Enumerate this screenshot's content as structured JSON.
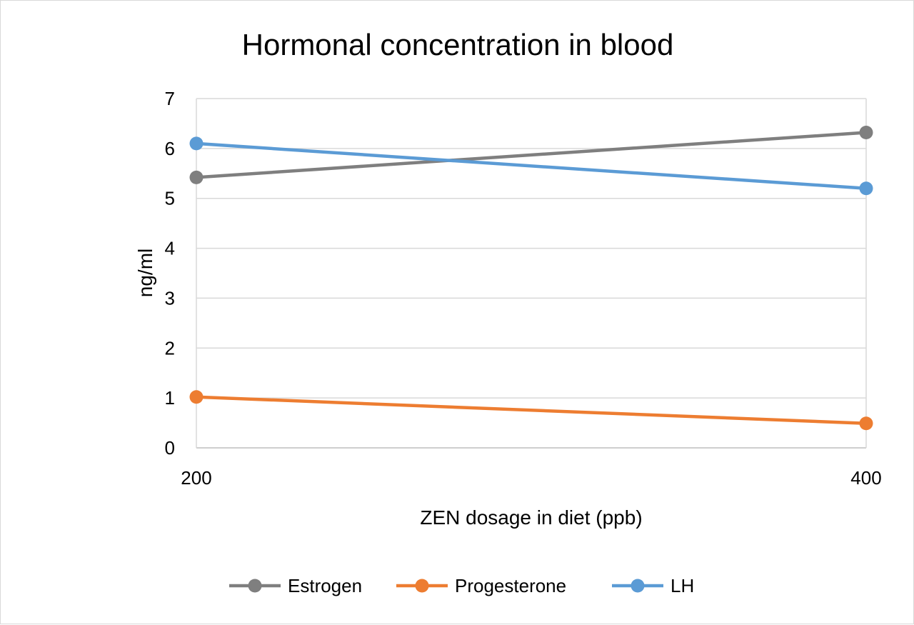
{
  "chart_data": {
    "type": "line",
    "title": "Hormonal concentration in blood",
    "xlabel": "ZEN dosage in diet (ppb)",
    "ylabel": "ng/ml",
    "categories": [
      "200",
      "400"
    ],
    "x": [
      200,
      400
    ],
    "ylim": [
      0,
      7
    ],
    "yticks": [
      0,
      1,
      2,
      3,
      4,
      5,
      6,
      7
    ],
    "grid": true,
    "legend_position": "bottom",
    "series": [
      {
        "name": "Estrogen",
        "values": [
          5.42,
          6.32
        ],
        "color": "#7f7f7f"
      },
      {
        "name": "Progesterone",
        "values": [
          1.02,
          0.49
        ],
        "color": "#ed7d31"
      },
      {
        "name": "LH",
        "values": [
          6.1,
          5.2
        ],
        "color": "#5b9bd5"
      }
    ]
  }
}
